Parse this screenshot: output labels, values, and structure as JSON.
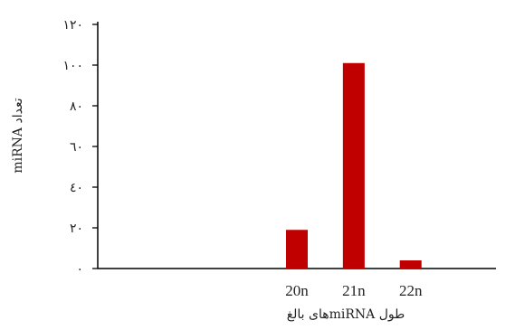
{
  "chart_data": {
    "type": "bar",
    "categories": [
      "",
      "",
      "",
      "20n",
      "21n",
      "22n",
      ""
    ],
    "values": [
      0,
      0,
      0,
      19,
      101,
      4,
      0
    ],
    "ylim": [
      0,
      120
    ],
    "yticks": [
      0,
      20,
      40,
      60,
      80,
      100,
      120
    ],
    "ytick_labels": [
      "٠",
      "٢٠",
      "٤٠",
      "٦٠",
      "٨٠",
      "١٠٠",
      "١٢٠"
    ],
    "xlabel": "طول miRNAهای بالغ",
    "ylabel": "تعداد miRNA",
    "bar_color": "#c00000",
    "grid": false
  }
}
